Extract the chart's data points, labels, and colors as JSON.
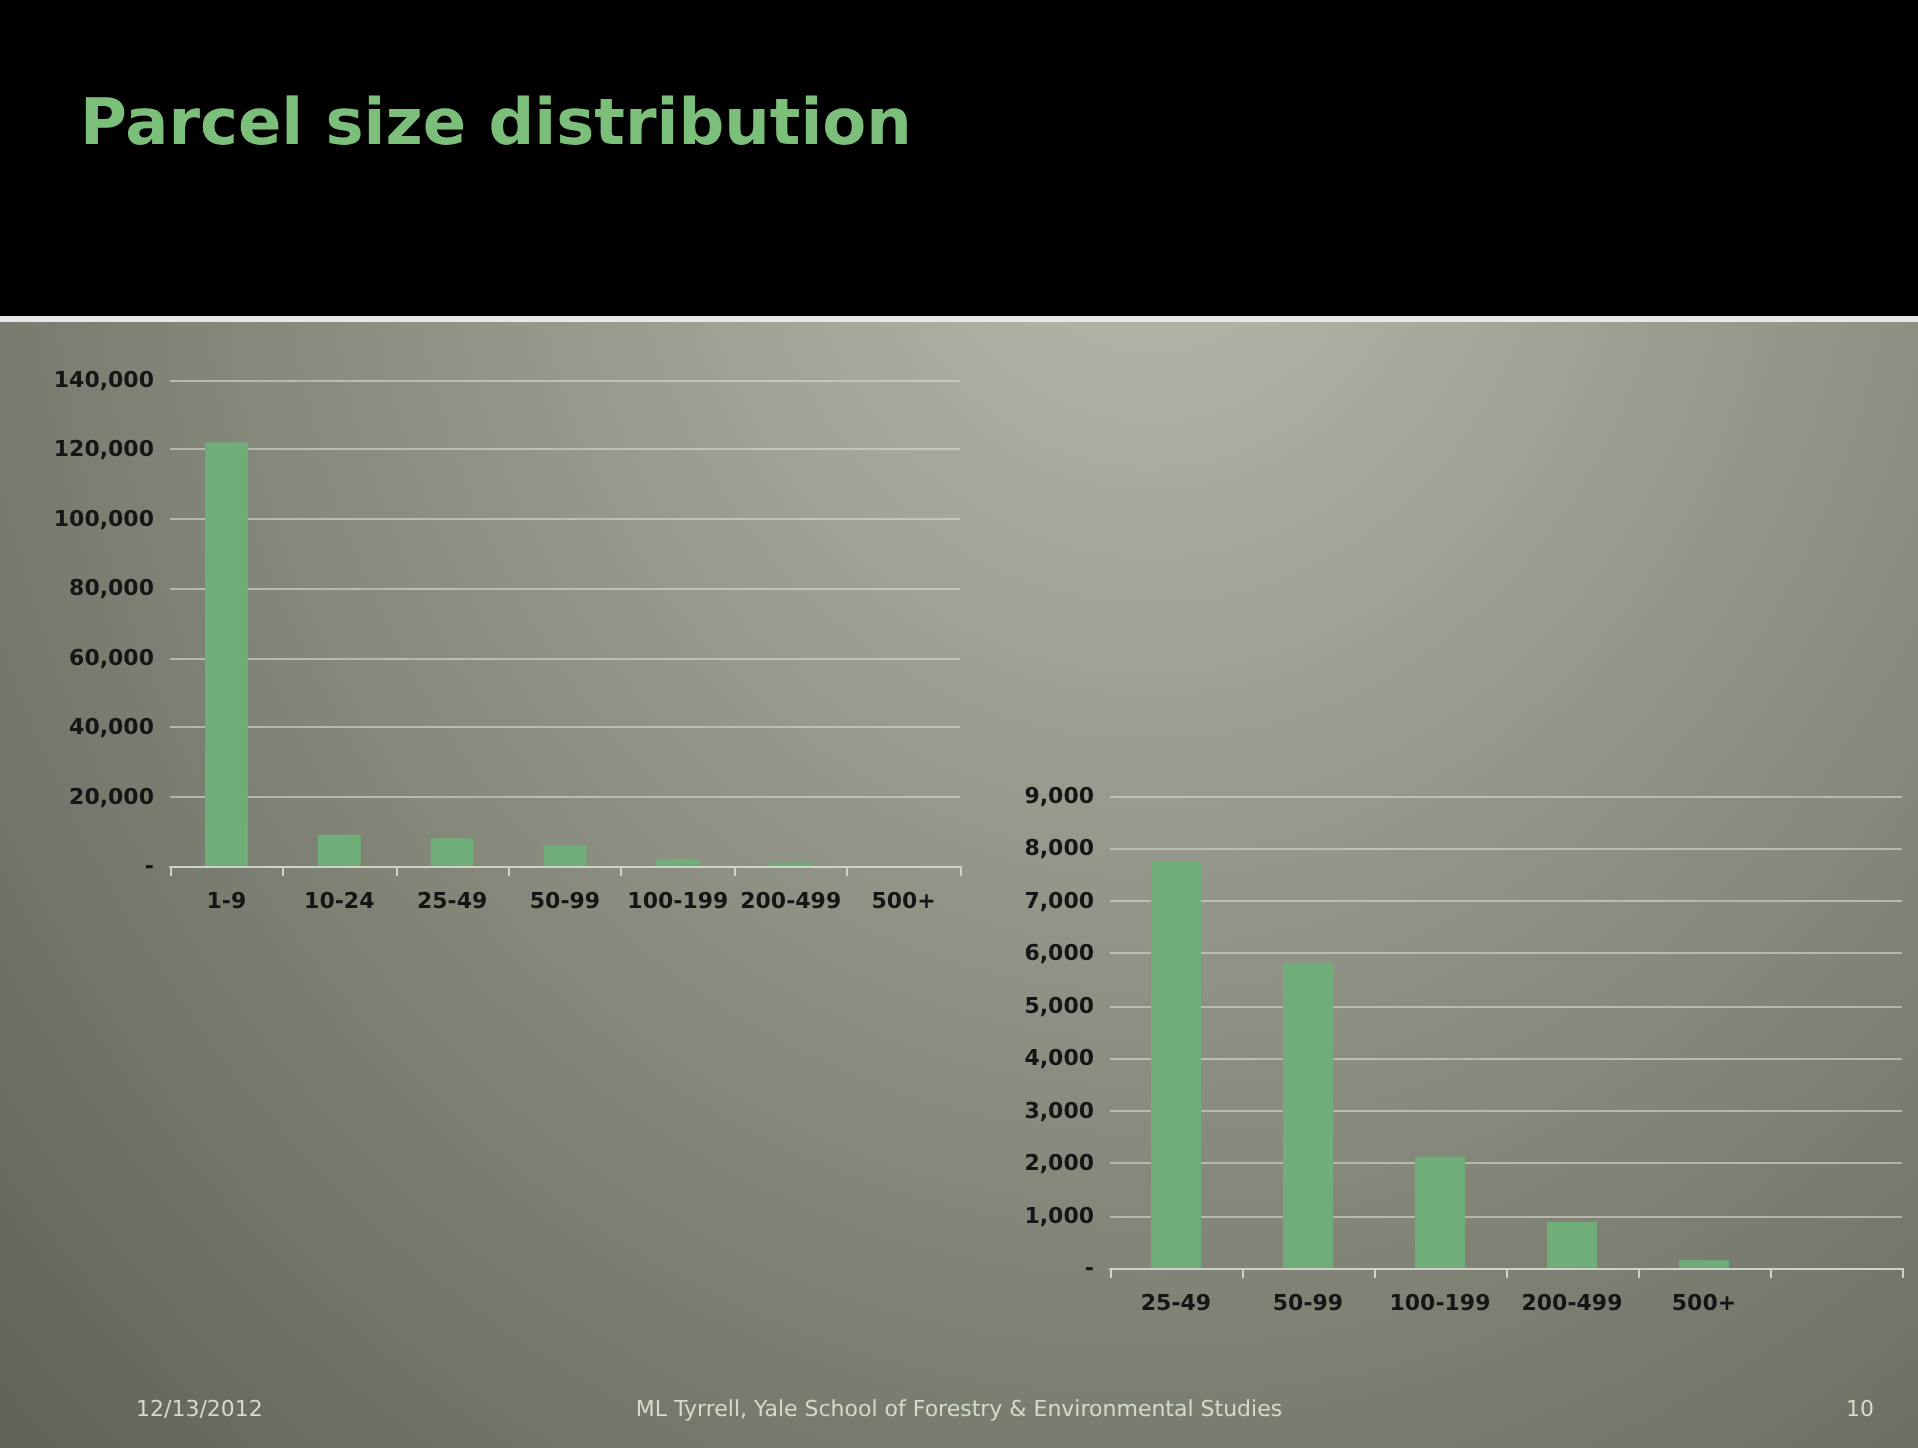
{
  "chart_data": [
    {
      "type": "bar",
      "title": "Parcel size distribution",
      "categories": [
        "1-9",
        "10-24",
        "25-49",
        "50-99",
        "100-199",
        "200-499",
        "500+"
      ],
      "values": [
        122000,
        9000,
        8000,
        6000,
        2000,
        1000,
        0
      ],
      "color": "#6fae78",
      "ylim": [
        0,
        140000
      ],
      "yticks": [
        {
          "value": 0,
          "label": "-"
        },
        {
          "value": 20000,
          "label": "20,000"
        },
        {
          "value": 40000,
          "label": "40,000"
        },
        {
          "value": 60000,
          "label": "60,000"
        },
        {
          "value": 80000,
          "label": "80,000"
        },
        {
          "value": 100000,
          "label": "100,000"
        },
        {
          "value": 120000,
          "label": "120,000"
        },
        {
          "value": 140000,
          "label": "140,000"
        }
      ],
      "grid": "y"
    },
    {
      "type": "bar",
      "categories": [
        "25-49",
        "50-99",
        "100-199",
        "200-499",
        "500+",
        null
      ],
      "values": [
        7750,
        5820,
        2120,
        880,
        150,
        null
      ],
      "color": "#6fae78",
      "ylim": [
        0,
        9000
      ],
      "yticks": [
        {
          "value": 0,
          "label": "-"
        },
        {
          "value": 1000,
          "label": "1,000"
        },
        {
          "value": 2000,
          "label": "2,000"
        },
        {
          "value": 3000,
          "label": "3,000"
        },
        {
          "value": 4000,
          "label": "4,000"
        },
        {
          "value": 5000,
          "label": "5,000"
        },
        {
          "value": 6000,
          "label": "6,000"
        },
        {
          "value": 7000,
          "label": "7,000"
        },
        {
          "value": 8000,
          "label": "8,000"
        },
        {
          "value": 9000,
          "label": "9,000"
        }
      ],
      "grid": "y",
      "annotations": [
        "12/13/2012",
        "ML Tyrrell, Yale School of Forestry & Environmental Studies",
        "10"
      ]
    }
  ]
}
